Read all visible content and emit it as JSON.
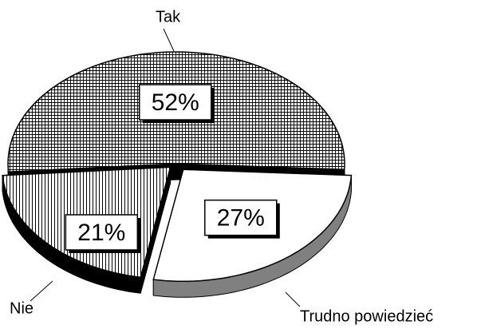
{
  "chart_data": {
    "type": "pie",
    "categories": [
      "Tak",
      "Trudno powiedzieć",
      "Nie"
    ],
    "values": [
      52,
      27,
      21
    ],
    "value_labels": [
      "52%",
      "27%",
      "21%"
    ]
  }
}
